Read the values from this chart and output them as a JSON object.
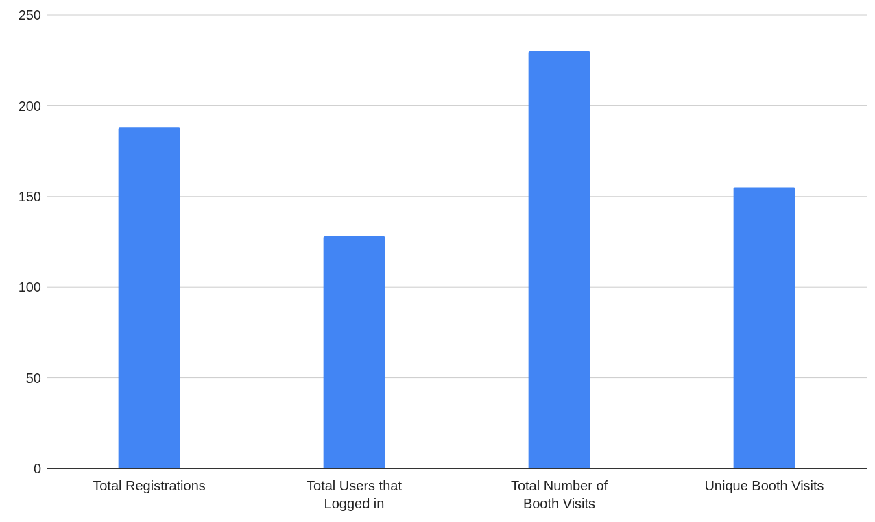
{
  "chart_data": {
    "type": "bar",
    "categories": [
      "Total Registrations",
      "Total Users that Logged in",
      "Total Number of Booth Visits",
      "Unique Booth Visits"
    ],
    "values": [
      188,
      128,
      230,
      155
    ],
    "color": "#4285f4",
    "ylim": [
      0,
      250
    ],
    "yticks": [
      0,
      50,
      100,
      150,
      200,
      250
    ],
    "grid": "y",
    "legend": false
  }
}
